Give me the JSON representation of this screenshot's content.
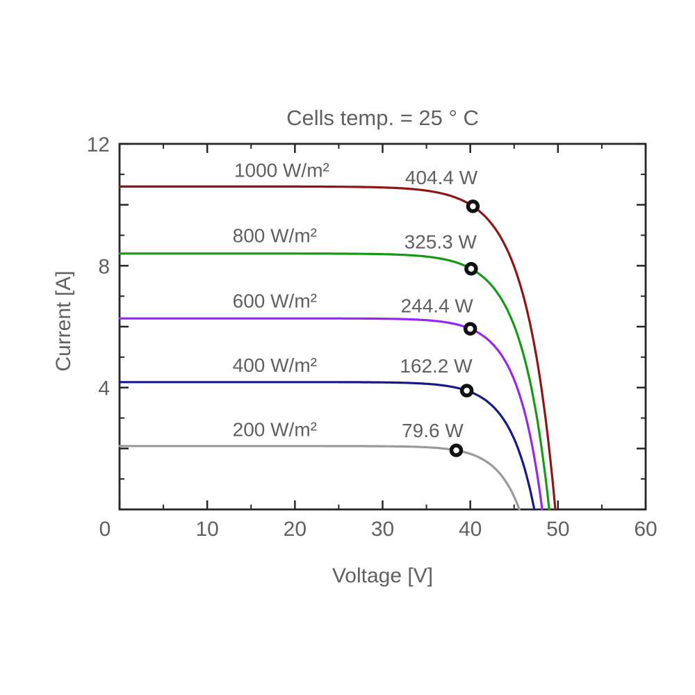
{
  "chart_data": {
    "type": "line",
    "title": "Cells temp. = 25 ° C",
    "xlabel": "Voltage [V]",
    "ylabel": "Current [A]",
    "xlim": [
      0,
      60
    ],
    "ylim": [
      0,
      12
    ],
    "x_major_ticks": [
      0,
      10,
      20,
      30,
      40,
      50,
      60
    ],
    "x_minor_ticks": [
      5,
      15,
      25,
      35,
      45,
      55
    ],
    "y_major_ticks": [
      0,
      2,
      4,
      6,
      8,
      10,
      12
    ],
    "y_minor_ticks": [
      1,
      3,
      5,
      7,
      9,
      11
    ],
    "x_tick_labels": [
      {
        "v": 0,
        "label": "0",
        "dx": -21
      },
      {
        "v": 10,
        "label": "10",
        "dx": 0
      },
      {
        "v": 20,
        "label": "20",
        "dx": 0
      },
      {
        "v": 30,
        "label": "30",
        "dx": 0
      },
      {
        "v": 40,
        "label": "40",
        "dx": 0
      },
      {
        "v": 50,
        "label": "50",
        "dx": 0
      },
      {
        "v": 60,
        "label": "60",
        "dx": 0
      }
    ],
    "y_tick_labels": [
      {
        "v": 4,
        "label": "4"
      },
      {
        "v": 8,
        "label": "8"
      },
      {
        "v": 12,
        "label": "12"
      }
    ],
    "grid": false,
    "legend": "inline-curve-labels",
    "axis_color": "#262626",
    "text_color": "#606060",
    "marker": {
      "shape": "ring",
      "color": "#111111",
      "fill": "#ffffff"
    },
    "series": [
      {
        "id": "1000wm2",
        "irradiance_label": "1000 W/m²",
        "irradiance_wm2": 1000,
        "power_label": "404.4 W",
        "color": "#8E1515",
        "isc_a": 10.6,
        "voc_v": 49.7,
        "mpp": {
          "v": 40.3,
          "i": 9.95
        },
        "irr_label_pos": {
          "v": 18.5,
          "i": 11.15
        },
        "power_label_pos": {
          "v": 36.7,
          "i": 10.9
        }
      },
      {
        "id": "800wm2",
        "irradiance_label": "800 W/m²",
        "irradiance_wm2": 800,
        "power_label": "325.3 W",
        "color": "#159A15",
        "isc_a": 8.4,
        "voc_v": 49.0,
        "mpp": {
          "v": 40.1,
          "i": 7.9
        },
        "irr_label_pos": {
          "v": 17.7,
          "i": 9.0
        },
        "power_label_pos": {
          "v": 36.6,
          "i": 8.8
        }
      },
      {
        "id": "600wm2",
        "irradiance_label": "600 W/m²",
        "irradiance_wm2": 600,
        "power_label": "244.4 W",
        "color": "#9428F0",
        "isc_a": 6.27,
        "voc_v": 48.2,
        "mpp": {
          "v": 40.0,
          "i": 5.93
        },
        "irr_label_pos": {
          "v": 17.7,
          "i": 6.86
        },
        "power_label_pos": {
          "v": 36.2,
          "i": 6.7
        }
      },
      {
        "id": "400wm2",
        "irradiance_label": "400 W/m²",
        "irradiance_wm2": 400,
        "power_label": "162.2 W",
        "color": "#181888",
        "isc_a": 4.18,
        "voc_v": 47.3,
        "mpp": {
          "v": 39.6,
          "i": 3.9
        },
        "irr_label_pos": {
          "v": 17.7,
          "i": 4.75
        },
        "power_label_pos": {
          "v": 36.1,
          "i": 4.72
        }
      },
      {
        "id": "200wm2",
        "irradiance_label": "200 W/m²",
        "irradiance_wm2": 200,
        "power_label": "79.6 W",
        "color": "#9A9A9A",
        "isc_a": 2.08,
        "voc_v": 45.6,
        "mpp": {
          "v": 38.4,
          "i": 1.94
        },
        "irr_label_pos": {
          "v": 17.7,
          "i": 2.63
        },
        "power_label_pos": {
          "v": 35.7,
          "i": 2.6
        }
      }
    ]
  }
}
